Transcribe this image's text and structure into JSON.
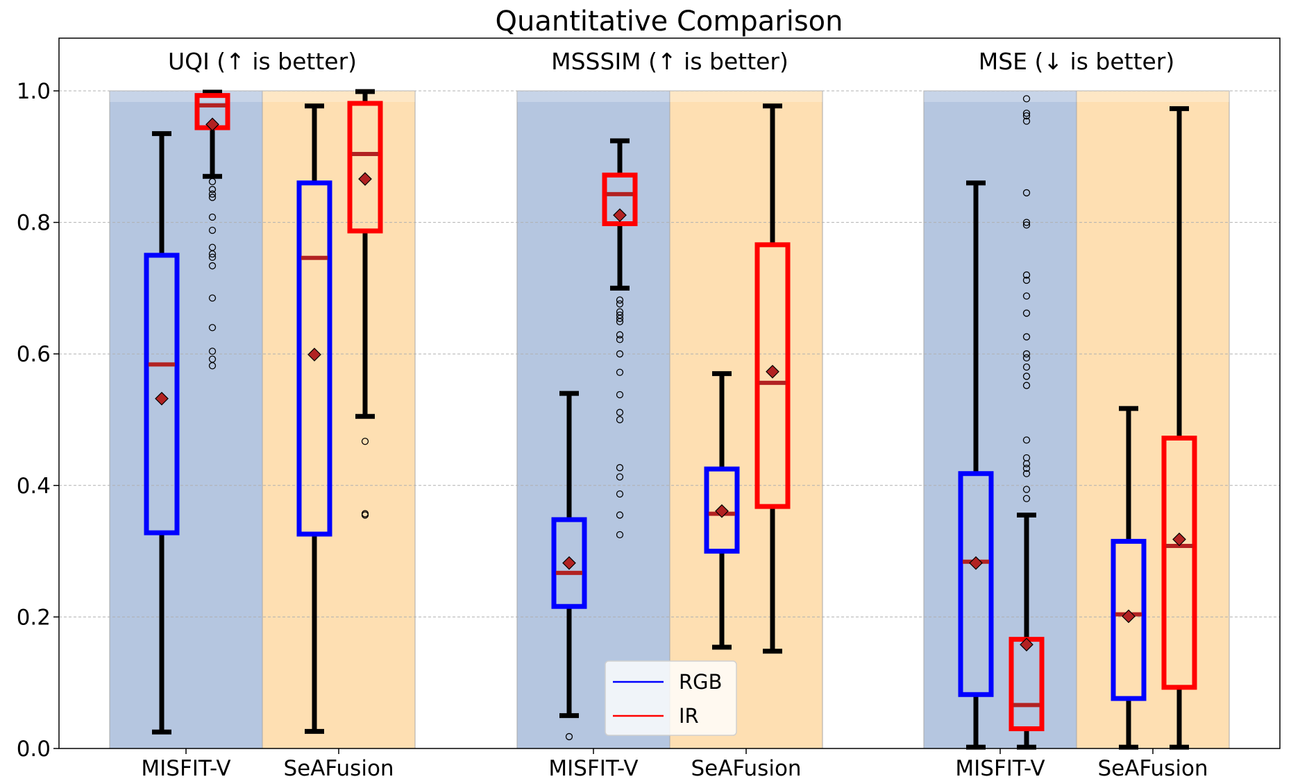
{
  "chart_data": {
    "type": "box",
    "title": "Quantitative Comparison",
    "xlabel": "",
    "ylabel": "",
    "ylim": [
      0,
      1.08
    ],
    "yticks": [
      "0.0",
      "0.2",
      "0.4",
      "0.6",
      "0.8",
      "1.0"
    ],
    "grid": "horizontal dashed",
    "legend_position": "bottom-center",
    "colors": {
      "rgb": "#0000ff",
      "ir": "#ff0000",
      "median": "#b22222",
      "mean_marker": "#b22222",
      "bg_misfit": "#b5c6e0",
      "bg_seafusion": "#fedfb2"
    },
    "legend": [
      {
        "label": "RGB",
        "color": "#0000ff"
      },
      {
        "label": "IR",
        "color": "#ff0000"
      }
    ],
    "groups": [
      {
        "label": "UQI (↑ is better)",
        "methods": [
          {
            "label": "MISFIT-V",
            "boxes": [
              {
                "series": "RGB",
                "whislo": 0.025,
                "q1": 0.328,
                "med": 0.584,
                "q3": 0.75,
                "whishi": 0.935,
                "mean": 0.532,
                "fliers": []
              },
              {
                "series": "IR",
                "whislo": 0.87,
                "q1": 0.944,
                "med": 0.978,
                "q3": 0.993,
                "whishi": 0.998,
                "mean": 0.949,
                "fliers": [
                  0.862,
                  0.85,
                  0.843,
                  0.838,
                  0.808,
                  0.788,
                  0.762,
                  0.752,
                  0.747,
                  0.734,
                  0.685,
                  0.64,
                  0.604,
                  0.592,
                  0.582
                ]
              }
            ]
          },
          {
            "label": "SeAFusion",
            "boxes": [
              {
                "series": "RGB",
                "whislo": 0.026,
                "q1": 0.326,
                "med": 0.746,
                "q3": 0.86,
                "whishi": 0.977,
                "mean": 0.599,
                "fliers": []
              },
              {
                "series": "IR",
                "whislo": 0.505,
                "q1": 0.787,
                "med": 0.904,
                "q3": 0.981,
                "whishi": 0.999,
                "mean": 0.866,
                "fliers": [
                  0.467,
                  0.357,
                  0.355
                ]
              }
            ]
          }
        ]
      },
      {
        "label": "MSSSIM (↑ is better)",
        "methods": [
          {
            "label": "MISFIT-V",
            "boxes": [
              {
                "series": "RGB",
                "whislo": 0.05,
                "q1": 0.216,
                "med": 0.267,
                "q3": 0.348,
                "whishi": 0.54,
                "mean": 0.282,
                "fliers": [
                  0.018
                ]
              },
              {
                "series": "IR",
                "whislo": 0.7,
                "q1": 0.798,
                "med": 0.843,
                "q3": 0.872,
                "whishi": 0.924,
                "mean": 0.811,
                "fliers": [
                  0.682,
                  0.676,
                  0.664,
                  0.659,
                  0.654,
                  0.649,
                  0.629,
                  0.622,
                  0.6,
                  0.572,
                  0.538,
                  0.511,
                  0.5,
                  0.427,
                  0.413,
                  0.387,
                  0.355,
                  0.325
                ]
              }
            ]
          },
          {
            "label": "SeAFusion",
            "boxes": [
              {
                "series": "RGB",
                "whislo": 0.154,
                "q1": 0.3,
                "med": 0.357,
                "q3": 0.425,
                "whishi": 0.57,
                "mean": 0.361,
                "fliers": []
              },
              {
                "series": "IR",
                "whislo": 0.148,
                "q1": 0.368,
                "med": 0.556,
                "q3": 0.766,
                "whishi": 0.977,
                "mean": 0.573,
                "fliers": []
              }
            ]
          }
        ]
      },
      {
        "label": "MSE (↓ is better)",
        "methods": [
          {
            "label": "MISFIT-V",
            "boxes": [
              {
                "series": "RGB",
                "whislo": 0.002,
                "q1": 0.082,
                "med": 0.284,
                "q3": 0.418,
                "whishi": 0.86,
                "mean": 0.282,
                "fliers": []
              },
              {
                "series": "IR",
                "whislo": 0.002,
                "q1": 0.03,
                "med": 0.066,
                "q3": 0.166,
                "whishi": 0.355,
                "mean": 0.158,
                "fliers": [
                  0.988,
                  0.966,
                  0.962,
                  0.954,
                  0.845,
                  0.8,
                  0.796,
                  0.72,
                  0.712,
                  0.688,
                  0.662,
                  0.626,
                  0.6,
                  0.594,
                  0.58,
                  0.566,
                  0.552,
                  0.469,
                  0.442,
                  0.433,
                  0.426,
                  0.418,
                  0.394,
                  0.38
                ]
              }
            ]
          },
          {
            "label": "SeAFusion",
            "boxes": [
              {
                "series": "RGB",
                "whislo": 0.002,
                "q1": 0.076,
                "med": 0.204,
                "q3": 0.315,
                "whishi": 0.517,
                "mean": 0.201,
                "fliers": []
              },
              {
                "series": "IR",
                "whislo": 0.002,
                "q1": 0.093,
                "med": 0.308,
                "q3": 0.472,
                "whishi": 0.973,
                "mean": 0.318,
                "fliers": []
              }
            ]
          }
        ]
      }
    ]
  }
}
